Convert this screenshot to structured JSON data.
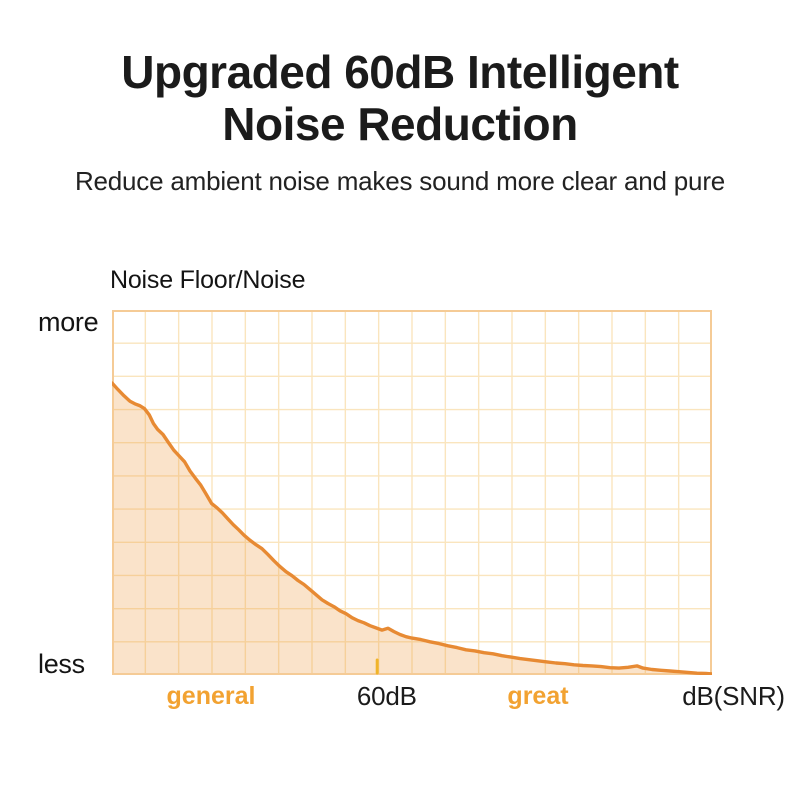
{
  "page": {
    "background": "#ffffff"
  },
  "header": {
    "title_line1": "Upgraded 60dB Intelligent",
    "title_line2": "Noise Reduction",
    "subtitle": "Reduce ambient noise makes sound more clear and pure",
    "text_color": "#1b1b1b"
  },
  "chart_data": {
    "type": "area",
    "title": "Noise Floor/Noise",
    "xlabel": "dB(SNR)",
    "ylabel": "Noise Floor/Noise",
    "y_axis_labels": {
      "top": "more",
      "bottom": "less"
    },
    "x_annotations": [
      {
        "label": "general",
        "x_percent": 16.5,
        "style": "highlight"
      },
      {
        "label": "60dB",
        "x_percent": 45.8,
        "style": "plain"
      },
      {
        "label": "great",
        "x_percent": 71.0,
        "style": "highlight"
      },
      {
        "label": "dB(SNR)",
        "x_percent": 103.6,
        "style": "plain"
      }
    ],
    "tick_x_percent": 44.2,
    "grid": {
      "columns": 18,
      "rows": 11,
      "visible": true
    },
    "legend": "none",
    "series": [
      {
        "name": "noise-floor",
        "points_format": "[x_percent_of_axis, noise_level_percent_of_height]",
        "points": [
          [
            0,
            80.0
          ],
          [
            1,
            78.2
          ],
          [
            2,
            76.5
          ],
          [
            3,
            75.0
          ],
          [
            3.8,
            74.3
          ],
          [
            4.6,
            73.8
          ],
          [
            5.4,
            73.0
          ],
          [
            6.2,
            71.3
          ],
          [
            6.9,
            68.9
          ],
          [
            7.6,
            67.3
          ],
          [
            8.5,
            65.9
          ],
          [
            9.4,
            63.7
          ],
          [
            10.3,
            61.6
          ],
          [
            11.2,
            60.0
          ],
          [
            12.1,
            58.4
          ],
          [
            13.0,
            55.9
          ],
          [
            13.9,
            53.9
          ],
          [
            14.8,
            52.0
          ],
          [
            15.7,
            49.5
          ],
          [
            16.6,
            47.0
          ],
          [
            17.5,
            45.8
          ],
          [
            18.4,
            44.4
          ],
          [
            19.3,
            42.8
          ],
          [
            20.2,
            41.2
          ],
          [
            21.1,
            39.8
          ],
          [
            22.0,
            38.3
          ],
          [
            23.0,
            36.9
          ],
          [
            24.0,
            35.7
          ],
          [
            25.0,
            34.6
          ],
          [
            26.0,
            33.0
          ],
          [
            27.0,
            31.3
          ],
          [
            28.0,
            29.7
          ],
          [
            29.0,
            28.3
          ],
          [
            30.0,
            27.2
          ],
          [
            31.0,
            25.9
          ],
          [
            32.0,
            24.8
          ],
          [
            33.0,
            23.4
          ],
          [
            34.0,
            22.0
          ],
          [
            35.0,
            20.6
          ],
          [
            36.0,
            19.6
          ],
          [
            37.0,
            18.7
          ],
          [
            38.0,
            17.6
          ],
          [
            39.0,
            16.8
          ],
          [
            40.0,
            15.7
          ],
          [
            41.0,
            14.9
          ],
          [
            42.0,
            14.3
          ],
          [
            43.0,
            13.5
          ],
          [
            44.0,
            12.9
          ],
          [
            45.0,
            12.3
          ],
          [
            46.0,
            12.8
          ],
          [
            47.0,
            11.9
          ],
          [
            48.0,
            11.1
          ],
          [
            49.0,
            10.5
          ],
          [
            50.0,
            10.1
          ],
          [
            51.5,
            9.7
          ],
          [
            53.0,
            9.1
          ],
          [
            54.5,
            8.6
          ],
          [
            56.0,
            8.0
          ],
          [
            57.5,
            7.5
          ],
          [
            59.0,
            6.9
          ],
          [
            60.5,
            6.6
          ],
          [
            62.0,
            6.1
          ],
          [
            63.5,
            5.8
          ],
          [
            65.0,
            5.3
          ],
          [
            66.5,
            4.9
          ],
          [
            68.0,
            4.5
          ],
          [
            69.5,
            4.2
          ],
          [
            71.0,
            3.9
          ],
          [
            72.5,
            3.6
          ],
          [
            74.0,
            3.3
          ],
          [
            75.5,
            3.1
          ],
          [
            77.0,
            2.8
          ],
          [
            78.5,
            2.6
          ],
          [
            80.0,
            2.5
          ],
          [
            81.5,
            2.3
          ],
          [
            83.0,
            2.0
          ],
          [
            84.5,
            1.9
          ],
          [
            86.0,
            2.1
          ],
          [
            87.5,
            2.5
          ],
          [
            88.5,
            1.9
          ],
          [
            90.0,
            1.5
          ],
          [
            91.5,
            1.3
          ],
          [
            93.0,
            1.1
          ],
          [
            94.5,
            0.9
          ],
          [
            96.0,
            0.7
          ],
          [
            97.5,
            0.5
          ],
          [
            99.0,
            0.4
          ],
          [
            100,
            0.3
          ]
        ]
      }
    ],
    "colors": {
      "line": "#E78A33",
      "fill": "rgba(238,153,58,0.27)",
      "grid": "#FAE5BE",
      "frame": "#F5CB96",
      "tick": "#F0B429",
      "highlight_label": "#F2A231",
      "plain_label": "#1b1b1b"
    }
  }
}
